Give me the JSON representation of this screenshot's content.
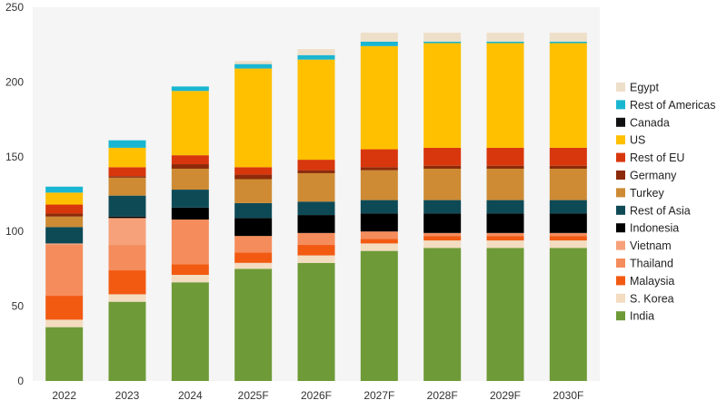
{
  "chart_data": {
    "type": "bar",
    "stacked": true,
    "title": "",
    "xlabel": "",
    "ylabel": "",
    "ylim": [
      0,
      250
    ],
    "yticks": [
      0,
      50,
      100,
      150,
      200,
      250
    ],
    "grid": false,
    "legend_position": "right",
    "categories": [
      "2022",
      "2023",
      "2024",
      "2025F",
      "2026F",
      "2027F",
      "2028F",
      "2029F",
      "2030F"
    ],
    "series": [
      {
        "name": "India",
        "color": "#6e9a37",
        "values": [
          36,
          53,
          66,
          75,
          79,
          87,
          89,
          89,
          89
        ]
      },
      {
        "name": "S. Korea",
        "color": "#f3dcc0",
        "values": [
          5,
          5,
          5,
          4,
          5,
          5,
          5,
          5,
          5
        ]
      },
      {
        "name": "Malaysia",
        "color": "#f25a12",
        "values": [
          16,
          16,
          7,
          7,
          7,
          3,
          3,
          3,
          3
        ]
      },
      {
        "name": "Thailand",
        "color": "#f58c5c",
        "values": [
          34,
          17,
          30,
          11,
          8,
          5,
          2,
          2,
          2
        ]
      },
      {
        "name": "Vietnam",
        "color": "#f6a17a",
        "values": [
          1,
          18,
          0,
          0,
          0,
          0,
          0,
          0,
          0
        ]
      },
      {
        "name": "Indonesia",
        "color": "#000000",
        "values": [
          0,
          1,
          8,
          12,
          12,
          12,
          13,
          13,
          13
        ]
      },
      {
        "name": "Rest of Asia",
        "color": "#0e4a56",
        "values": [
          11,
          14,
          12,
          10,
          9,
          9,
          9,
          9,
          9
        ]
      },
      {
        "name": "Turkey",
        "color": "#ce8b34",
        "values": [
          7,
          12,
          14,
          16,
          19,
          20,
          21,
          21,
          21
        ]
      },
      {
        "name": "Germany",
        "color": "#8c2a0a",
        "values": [
          2,
          1,
          3,
          3,
          2,
          2,
          2,
          2,
          2
        ]
      },
      {
        "name": "Rest of EU",
        "color": "#d8360c",
        "values": [
          6,
          6,
          6,
          5,
          7,
          12,
          12,
          12,
          12
        ]
      },
      {
        "name": "US",
        "color": "#ffc000",
        "values": [
          8,
          13,
          43,
          66,
          67,
          69,
          70,
          70,
          70
        ]
      },
      {
        "name": "Canada",
        "color": "#111111",
        "values": [
          0,
          0,
          0,
          0,
          0,
          0,
          0,
          0,
          0
        ]
      },
      {
        "name": "Rest of Americas",
        "color": "#19b6d1",
        "values": [
          4,
          5,
          3,
          3,
          3,
          3,
          1,
          1,
          1
        ]
      },
      {
        "name": "Egypt",
        "color": "#eedfc9",
        "values": [
          0,
          0,
          0,
          2,
          4,
          6,
          6,
          6,
          6
        ]
      }
    ]
  }
}
